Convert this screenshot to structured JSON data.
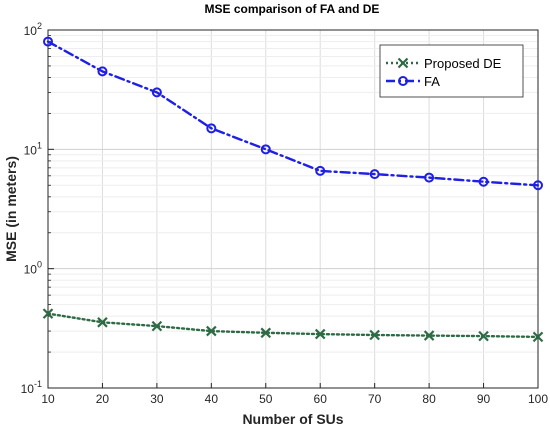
{
  "chart_data": {
    "type": "line",
    "title": "MSE comparison of FA and DE",
    "xlabel": "Number of SUs",
    "ylabel": "MSE (in meters)",
    "xlim": [
      10,
      100
    ],
    "ylim": [
      0.1,
      100
    ],
    "yscale": "log",
    "grid": true,
    "legend_position": "top-right",
    "x": [
      10,
      20,
      30,
      40,
      50,
      60,
      70,
      80,
      90,
      100
    ],
    "x_ticks": [
      "10",
      "20",
      "30",
      "40",
      "50",
      "60",
      "70",
      "80",
      "90",
      "100"
    ],
    "y_ticks": [
      {
        "value": 0.1,
        "base": "10",
        "exp": "-1"
      },
      {
        "value": 1,
        "base": "10",
        "exp": "0"
      },
      {
        "value": 10,
        "base": "10",
        "exp": "1"
      },
      {
        "value": 100,
        "base": "10",
        "exp": "2"
      }
    ],
    "series": [
      {
        "name": "Proposed DE",
        "color": "#2e6b45",
        "line_style": "dotted",
        "marker": "x",
        "values": [
          0.42,
          0.355,
          0.33,
          0.3,
          0.29,
          0.283,
          0.278,
          0.275,
          0.272,
          0.268
        ]
      },
      {
        "name": "FA",
        "color": "#1f1fe6",
        "line_style": "dash-dot",
        "marker": "circle",
        "values": [
          80,
          45,
          30,
          15,
          10,
          6.6,
          6.2,
          5.8,
          5.35,
          5.0
        ]
      }
    ]
  }
}
